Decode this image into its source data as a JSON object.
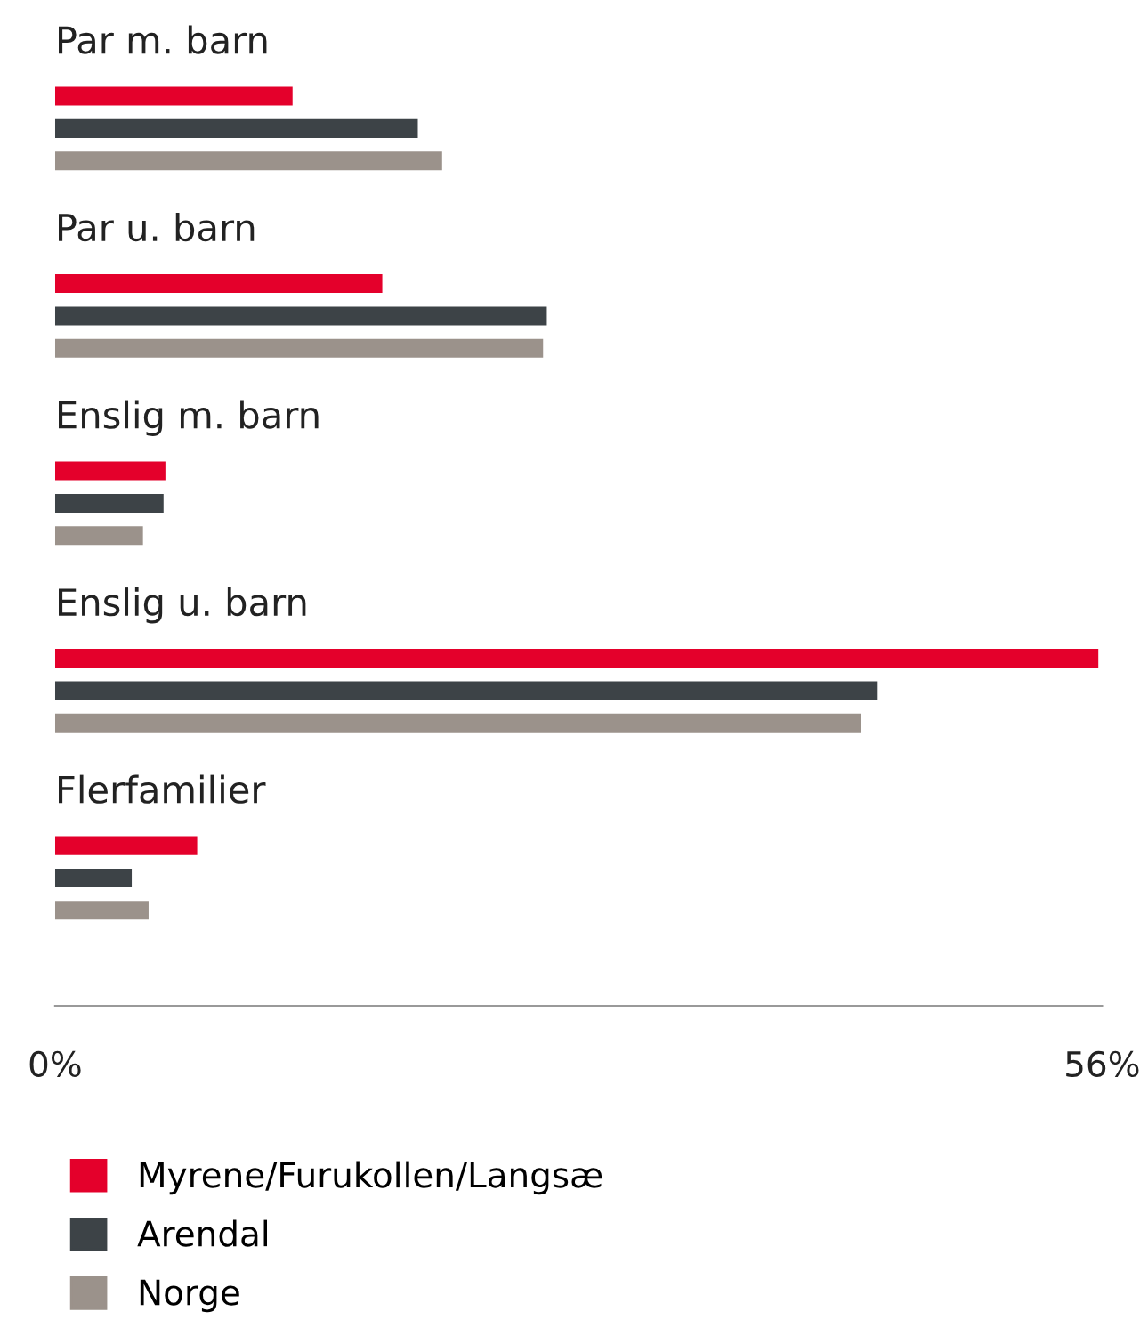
{
  "chart_data": {
    "type": "bar",
    "orientation": "horizontal",
    "categories": [
      "Par m. barn",
      "Par u. barn",
      "Enslig m. barn",
      "Enslig u. barn",
      "Flerfamilier"
    ],
    "series": [
      {
        "name": "Myrene/Furukollen/Langsæ",
        "color": "#e4002b",
        "values": [
          12.7,
          17.5,
          5.9,
          55.8,
          7.6
        ]
      },
      {
        "name": "Arendal",
        "color": "#3d4347",
        "values": [
          19.4,
          26.3,
          5.8,
          44.0,
          4.1
        ]
      },
      {
        "name": "Norge",
        "color": "#9b928b",
        "values": [
          20.7,
          26.1,
          4.7,
          43.1,
          5.0
        ]
      }
    ],
    "xlim": [
      0,
      56
    ],
    "xticks": [
      {
        "value": 0,
        "label": "0%"
      },
      {
        "value": 56,
        "label": "56%"
      }
    ],
    "grid": false,
    "legend": "bottom"
  }
}
